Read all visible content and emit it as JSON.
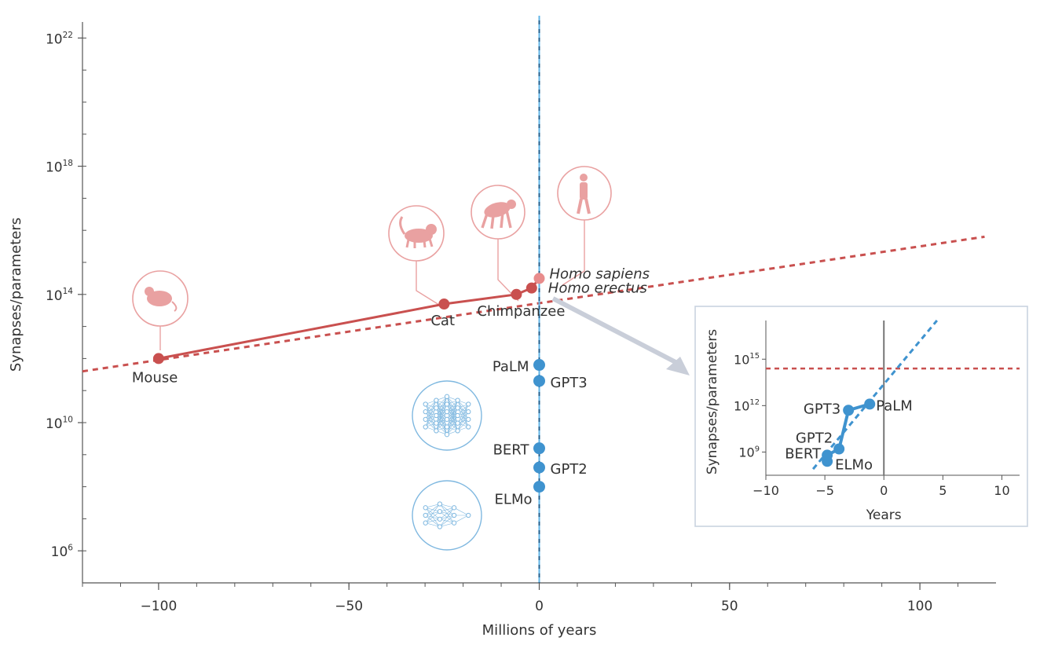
{
  "chart_data": [
    {
      "type": "line",
      "xlabel": "Millions of years",
      "ylabel": "Synapses/parameters",
      "xlim": [
        -120,
        120
      ],
      "ylim_log10": [
        5,
        22.5
      ],
      "y_scale": "log",
      "x_ticks": [
        {
          "value": -100,
          "label": "−100"
        },
        {
          "value": -50,
          "label": "−50"
        },
        {
          "value": 0,
          "label": "0"
        },
        {
          "value": 50,
          "label": "50"
        },
        {
          "value": 100,
          "label": "100"
        }
      ],
      "y_ticks": [
        {
          "exp": 6,
          "base": "10",
          "sup": "6"
        },
        {
          "exp": 10,
          "base": "10",
          "sup": "10"
        },
        {
          "exp": 14,
          "base": "10",
          "sup": "14"
        },
        {
          "exp": 18,
          "base": "10",
          "sup": "18"
        },
        {
          "exp": 22,
          "base": "10",
          "sup": "22"
        }
      ],
      "colors": {
        "brain": "#c9504f",
        "brain_light": "#e88c8c",
        "ai": "#3f93cf",
        "axis": "#555555"
      },
      "series": [
        {
          "key": "brains",
          "points": [
            {
              "label": "Mouse",
              "x": -100,
              "log10_y": 12.0
            },
            {
              "label": "Cat",
              "x": -25,
              "log10_y": 13.7
            },
            {
              "label": "Chimpanzee",
              "x": -6,
              "log10_y": 14.0
            },
            {
              "label": "Homo erectus",
              "x": -2,
              "log10_y": 14.2,
              "italic": true
            },
            {
              "label": "Homo sapiens",
              "x": 0,
              "log10_y": 14.5,
              "italic": true
            }
          ]
        },
        {
          "key": "language_models",
          "points": [
            {
              "label": "PaLM",
              "x": 0,
              "log10_y": 11.8
            },
            {
              "label": "GPT3",
              "x": 0,
              "log10_y": 11.3
            },
            {
              "label": "BERT",
              "x": 0,
              "log10_y": 9.2
            },
            {
              "label": "GPT2",
              "x": 0,
              "log10_y": 8.6
            },
            {
              "label": "ELMo",
              "x": 0,
              "log10_y": 8.0
            }
          ]
        }
      ],
      "trend_line": {
        "from": {
          "x": -120,
          "log10_y": 11.6
        },
        "to": {
          "x": 117,
          "log10_y": 15.8
        }
      },
      "vertical_line_x": 0,
      "icons": [
        {
          "name": "mouse-icon",
          "for": "Mouse"
        },
        {
          "name": "cat-icon",
          "for": "Cat"
        },
        {
          "name": "chimpanzee-icon",
          "for": "Chimpanzee"
        },
        {
          "name": "human-icon",
          "for": "Homo sapiens"
        },
        {
          "name": "neural-network-large-icon",
          "for": "BERT"
        },
        {
          "name": "neural-network-small-icon",
          "for": "ELMo"
        }
      ]
    },
    {
      "type": "line",
      "xlabel": "Years",
      "ylabel": "Synapses/parameters",
      "xlim": [
        -10,
        11.5
      ],
      "ylim_log10": [
        7.5,
        17.5
      ],
      "y_scale": "log",
      "x_ticks": [
        {
          "value": -10,
          "label": "−10"
        },
        {
          "value": -5,
          "label": "−5"
        },
        {
          "value": 0,
          "label": "0"
        },
        {
          "value": 5,
          "label": "5"
        },
        {
          "value": 10,
          "label": "10"
        }
      ],
      "y_ticks": [
        {
          "exp": 9,
          "base": "10",
          "sup": "9"
        },
        {
          "exp": 12,
          "base": "10",
          "sup": "12"
        },
        {
          "exp": 15,
          "base": "10",
          "sup": "15"
        }
      ],
      "human_level_log10": 14.4,
      "series": [
        {
          "key": "language_models",
          "points": [
            {
              "label": "ELMo",
              "x": -4.8,
              "log10_y": 8.4
            },
            {
              "label": "BERT",
              "x": -4.8,
              "log10_y": 8.8
            },
            {
              "label": "GPT2",
              "x": -3.8,
              "log10_y": 9.2
            },
            {
              "label": "GPT3",
              "x": -3.0,
              "log10_y": 11.7
            },
            {
              "label": "PaLM",
              "x": -1.2,
              "log10_y": 12.1
            }
          ]
        }
      ],
      "trend_line": {
        "from": {
          "x": -6,
          "log10_y": 7.9
        },
        "to": {
          "x": 4.5,
          "log10_y": 17.5
        }
      },
      "vertical_line_x": 0
    }
  ]
}
